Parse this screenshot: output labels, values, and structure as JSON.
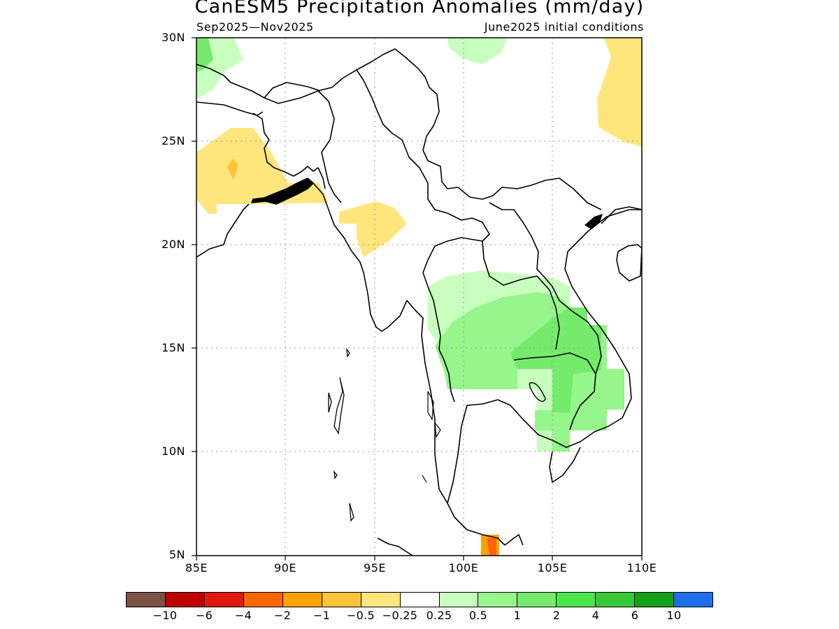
{
  "title": "CanESM5 Precipitation Anomalies (mm/day)",
  "period": "Sep2025—Nov2025",
  "init": "June2025 initial conditions",
  "axes": {
    "lat_labels": [
      "30N",
      "25N",
      "20N",
      "15N",
      "10N",
      "5N"
    ],
    "lon_labels": [
      "85E",
      "90E",
      "95E",
      "100E",
      "105E",
      "110E"
    ]
  },
  "legend": {
    "colors": [
      "#7b5244",
      "#c00000",
      "#e01a0a",
      "#ff6600",
      "#ffa200",
      "#ffc23b",
      "#ffe67c",
      "#ffffff",
      "#c8ffbe",
      "#96f58b",
      "#74eb6b",
      "#4ce64c",
      "#37c837",
      "#15a115",
      "#1e6eeb"
    ],
    "labels": [
      "−10",
      "−6",
      "−4",
      "−2",
      "−1",
      "−0.5",
      "−0.25",
      "0.25",
      "0.5",
      "1",
      "2",
      "4",
      "6",
      "10"
    ]
  },
  "regions": [
    {
      "name": "anomaly-patch-nw-green",
      "color": "#c8ffbe"
    },
    {
      "name": "anomaly-patch-nw-green-strong",
      "color": "#74eb6b"
    },
    {
      "name": "anomaly-patch-north-green",
      "color": "#c8ffbe"
    },
    {
      "name": "anomaly-patch-ne-yellow",
      "color": "#ffe67c"
    },
    {
      "name": "anomaly-patch-bangladesh-yellow",
      "color": "#ffe67c"
    },
    {
      "name": "anomaly-patch-bangladesh-orange",
      "color": "#ffc23b"
    },
    {
      "name": "anomaly-patch-myanmar-yellow",
      "color": "#ffe67c"
    },
    {
      "name": "anomaly-patch-indochina-light-green",
      "color": "#c8ffbe"
    },
    {
      "name": "anomaly-patch-indochina-green",
      "color": "#96f58b"
    },
    {
      "name": "anomaly-patch-indochina-medium-green",
      "color": "#74eb6b"
    },
    {
      "name": "anomaly-patch-malay-orange",
      "color": "#ffa200"
    },
    {
      "name": "anomaly-patch-malay-dark-orange",
      "color": "#ff6600"
    }
  ]
}
